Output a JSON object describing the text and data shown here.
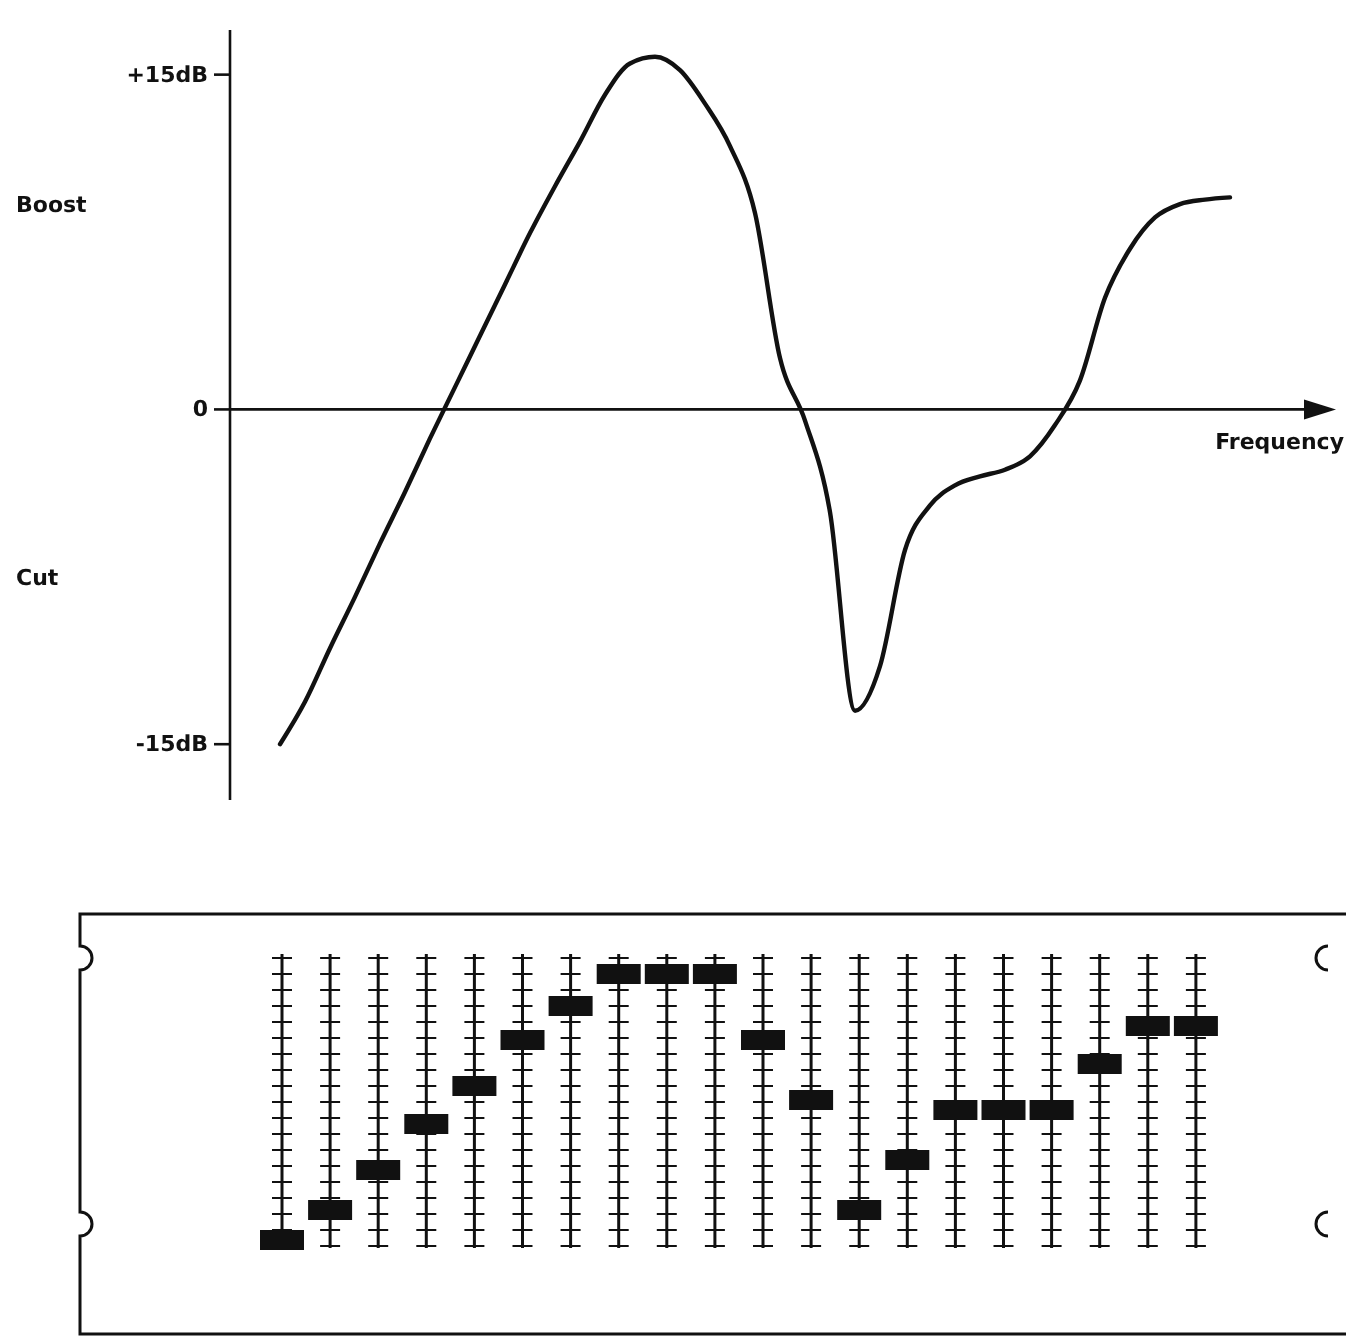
{
  "chart_data": {
    "type": "line",
    "xlabel": "Frequency",
    "categories": [
      null,
      null,
      null,
      null,
      null,
      null,
      null,
      null,
      null,
      null,
      null,
      null,
      null,
      null,
      null,
      null,
      null,
      null,
      null,
      null,
      null,
      null,
      null,
      null,
      null,
      null,
      null,
      null,
      null,
      null,
      null,
      null,
      null,
      null,
      null,
      null,
      null,
      null,
      null
    ],
    "series": [
      {
        "color": "#111111",
        "values": [
          -15,
          -13.1,
          -10.7,
          -8.4,
          -6.0,
          -3.7,
          -1.3,
          1.0,
          3.3,
          5.6,
          7.9,
          10.0,
          12.0,
          14.1,
          15.5,
          15.8,
          15.2,
          13.7,
          11.8,
          8.8,
          2.3,
          -0.5,
          -4.6,
          -13.5,
          -11.5,
          -6.3,
          -4.3,
          -3.4,
          -3.0,
          -2.7,
          -2.1,
          -0.7,
          1.3,
          5.0,
          7.2,
          8.6,
          9.2,
          9.4,
          9.5
        ]
      }
    ],
    "ylim": [
      -17.5,
      17
    ],
    "yticks": [
      {
        "value": 15,
        "label": "+15dB"
      },
      0,
      {
        "value": -15,
        "label": "-15dB"
      }
    ],
    "annotations": [
      "Boost",
      "Cut"
    ],
    "marker": "none",
    "line_style": "solid"
  }
}
